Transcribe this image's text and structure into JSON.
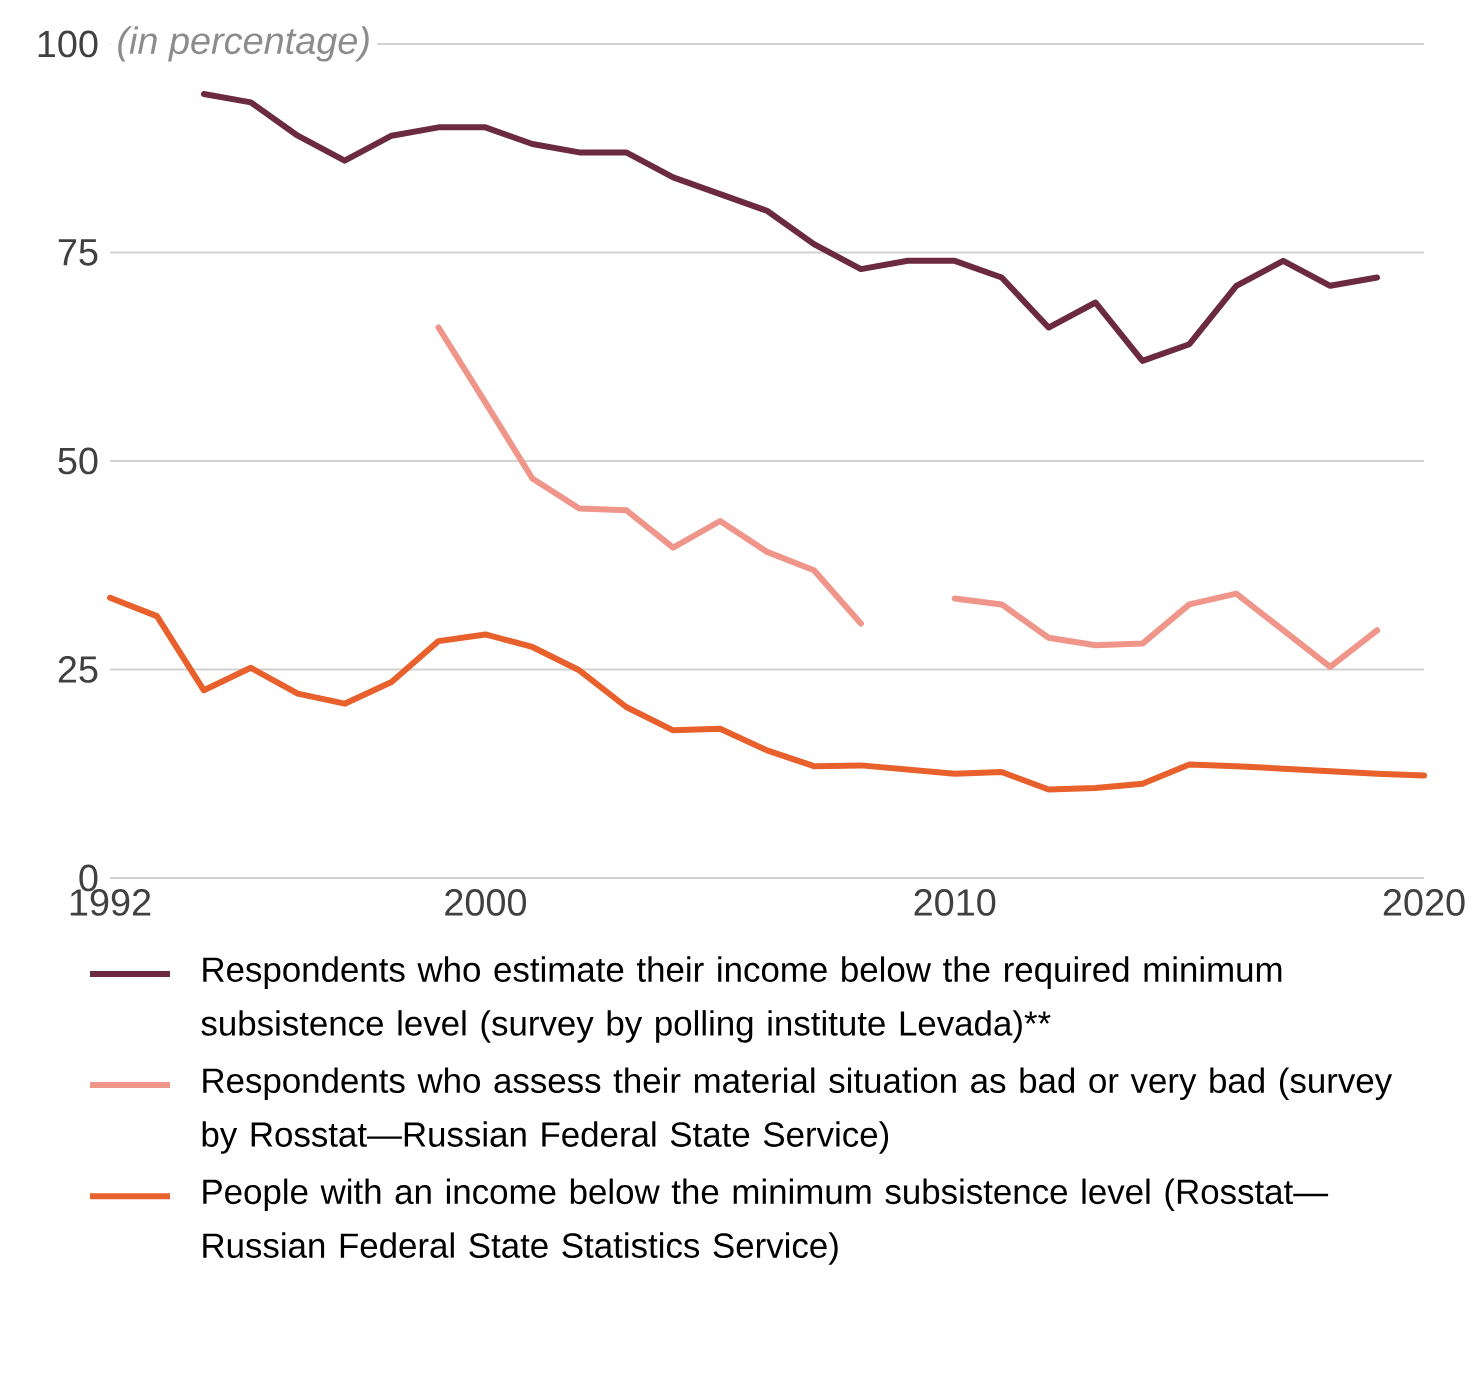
{
  "chart_data": {
    "type": "line",
    "ylabel": "(in percentage)",
    "x": [
      1992,
      1993,
      1994,
      1995,
      1996,
      1997,
      1998,
      1999,
      2000,
      2001,
      2002,
      2003,
      2004,
      2005,
      2006,
      2007,
      2008,
      2009,
      2010,
      2011,
      2012,
      2013,
      2014,
      2015,
      2016,
      2017,
      2018,
      2019,
      2020
    ],
    "series": [
      {
        "name": "Respondents who estimate their income below the required minimum subsistence level (survey by polling institute Levada)**",
        "color": "#6b2a3f",
        "values": [
          null,
          null,
          94,
          93,
          89,
          86,
          89,
          90,
          90,
          88,
          87,
          87,
          84,
          82,
          80,
          76,
          73,
          74,
          74,
          72,
          66,
          69,
          62,
          64,
          71,
          74,
          71,
          72,
          null
        ]
      },
      {
        "name": "Respondents who assess their material situation as bad or very bad (survey by Rosstat—Russian Federal State Service)",
        "color": "#f0958a",
        "values": [
          null,
          null,
          null,
          null,
          null,
          null,
          null,
          66,
          57,
          47.9,
          44.3,
          44.1,
          39.6,
          42.8,
          39.1,
          36.9,
          30.5,
          null,
          33.5,
          32.8,
          28.8,
          27.9,
          28.1,
          32.8,
          34.1,
          29.7,
          25.3,
          29.7,
          null
        ]
      },
      {
        "name": "People with an income below the minimum subsistence level (Rosstat—Russian Federal State Statistics Service)",
        "color": "#e8602c",
        "values": [
          33.6,
          31.4,
          22.5,
          25.2,
          22.1,
          20.9,
          23.5,
          28.4,
          29.2,
          27.7,
          24.9,
          20.5,
          17.7,
          17.9,
          15.3,
          13.4,
          13.5,
          13.0,
          12.5,
          12.7,
          10.6,
          10.8,
          11.3,
          13.6,
          13.4,
          13.1,
          12.8,
          12.5,
          12.3
        ]
      }
    ],
    "xlim": [
      1992,
      2020
    ],
    "xticks": [
      1992,
      2000,
      2010,
      2020
    ],
    "ylim": [
      0,
      100
    ],
    "yticks": [
      0,
      25,
      50,
      75,
      100
    ],
    "grid": "y",
    "legend": "bottom",
    "line_style": "solid",
    "marker": "none"
  }
}
